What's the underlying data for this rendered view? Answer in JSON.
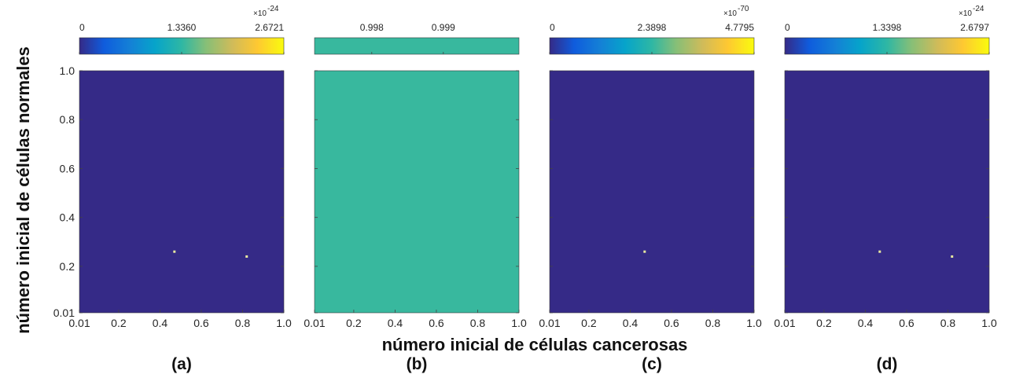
{
  "figure": {
    "xlabel": "número inicial de células cancerosas",
    "ylabel": "número inicial de células normales"
  },
  "colors": {
    "low": "#352a87",
    "mid": "#38b89e",
    "high": "#f9fb0e",
    "dot": "#e8e9a0"
  },
  "chart_data": [
    {
      "type": "heatmap",
      "panel_label": "(a)",
      "x_ticks": [
        "0.01",
        "0.2",
        "0.4",
        "0.6",
        "0.8",
        "1.0"
      ],
      "y_ticks": [
        "0.01",
        "0.2",
        "0.4",
        "0.6",
        "0.8",
        "1.0"
      ],
      "xlim": [
        0.01,
        1.0
      ],
      "ylim": [
        0.01,
        1.0
      ],
      "background_value": 0,
      "fill_color": "#352a87",
      "points": [
        {
          "x": 0.47,
          "y": 0.26
        },
        {
          "x": 0.82,
          "y": 0.24
        }
      ],
      "colorbar": {
        "ticks": [
          "0",
          "1.3360",
          "2.6721"
        ],
        "exponent_base": "×10",
        "exponent": "-24",
        "uniform": false
      }
    },
    {
      "type": "heatmap",
      "panel_label": "(b)",
      "x_ticks": [
        "0.01",
        "0.2",
        "0.4",
        "0.6",
        "0.8",
        "1.0"
      ],
      "y_ticks": [
        "0.01",
        "0.2",
        "0.4",
        "0.6",
        "0.8",
        "1.0"
      ],
      "xlim": [
        0.01,
        1.0
      ],
      "ylim": [
        0.01,
        1.0
      ],
      "background_value": 1,
      "fill_color": "#38b89e",
      "points": [],
      "colorbar": {
        "ticks": [
          "0.998",
          "0.999"
        ],
        "exponent_base": "",
        "exponent": "",
        "uniform": true
      }
    },
    {
      "type": "heatmap",
      "panel_label": "(c)",
      "x_ticks": [
        "0.01",
        "0.2",
        "0.4",
        "0.6",
        "0.8",
        "1.0"
      ],
      "y_ticks": [
        "0.01",
        "0.2",
        "0.4",
        "0.6",
        "0.8",
        "1.0"
      ],
      "xlim": [
        0.01,
        1.0
      ],
      "ylim": [
        0.01,
        1.0
      ],
      "background_value": 0,
      "fill_color": "#352a87",
      "points": [
        {
          "x": 0.47,
          "y": 0.26
        }
      ],
      "colorbar": {
        "ticks": [
          "0",
          "2.3898",
          "4.7795"
        ],
        "exponent_base": "×10",
        "exponent": "-70",
        "uniform": false
      }
    },
    {
      "type": "heatmap",
      "panel_label": "(d)",
      "x_ticks": [
        "0.01",
        "0.2",
        "0.4",
        "0.6",
        "0.8",
        "1.0"
      ],
      "y_ticks": [
        "0.01",
        "0.2",
        "0.4",
        "0.6",
        "0.8",
        "1.0"
      ],
      "xlim": [
        0.01,
        1.0
      ],
      "ylim": [
        0.01,
        1.0
      ],
      "background_value": 0,
      "fill_color": "#352a87",
      "points": [
        {
          "x": 0.47,
          "y": 0.26
        },
        {
          "x": 0.82,
          "y": 0.24
        }
      ],
      "colorbar": {
        "ticks": [
          "0",
          "1.3398",
          "2.6797"
        ],
        "exponent_base": "×10",
        "exponent": "-24",
        "uniform": false
      }
    }
  ]
}
